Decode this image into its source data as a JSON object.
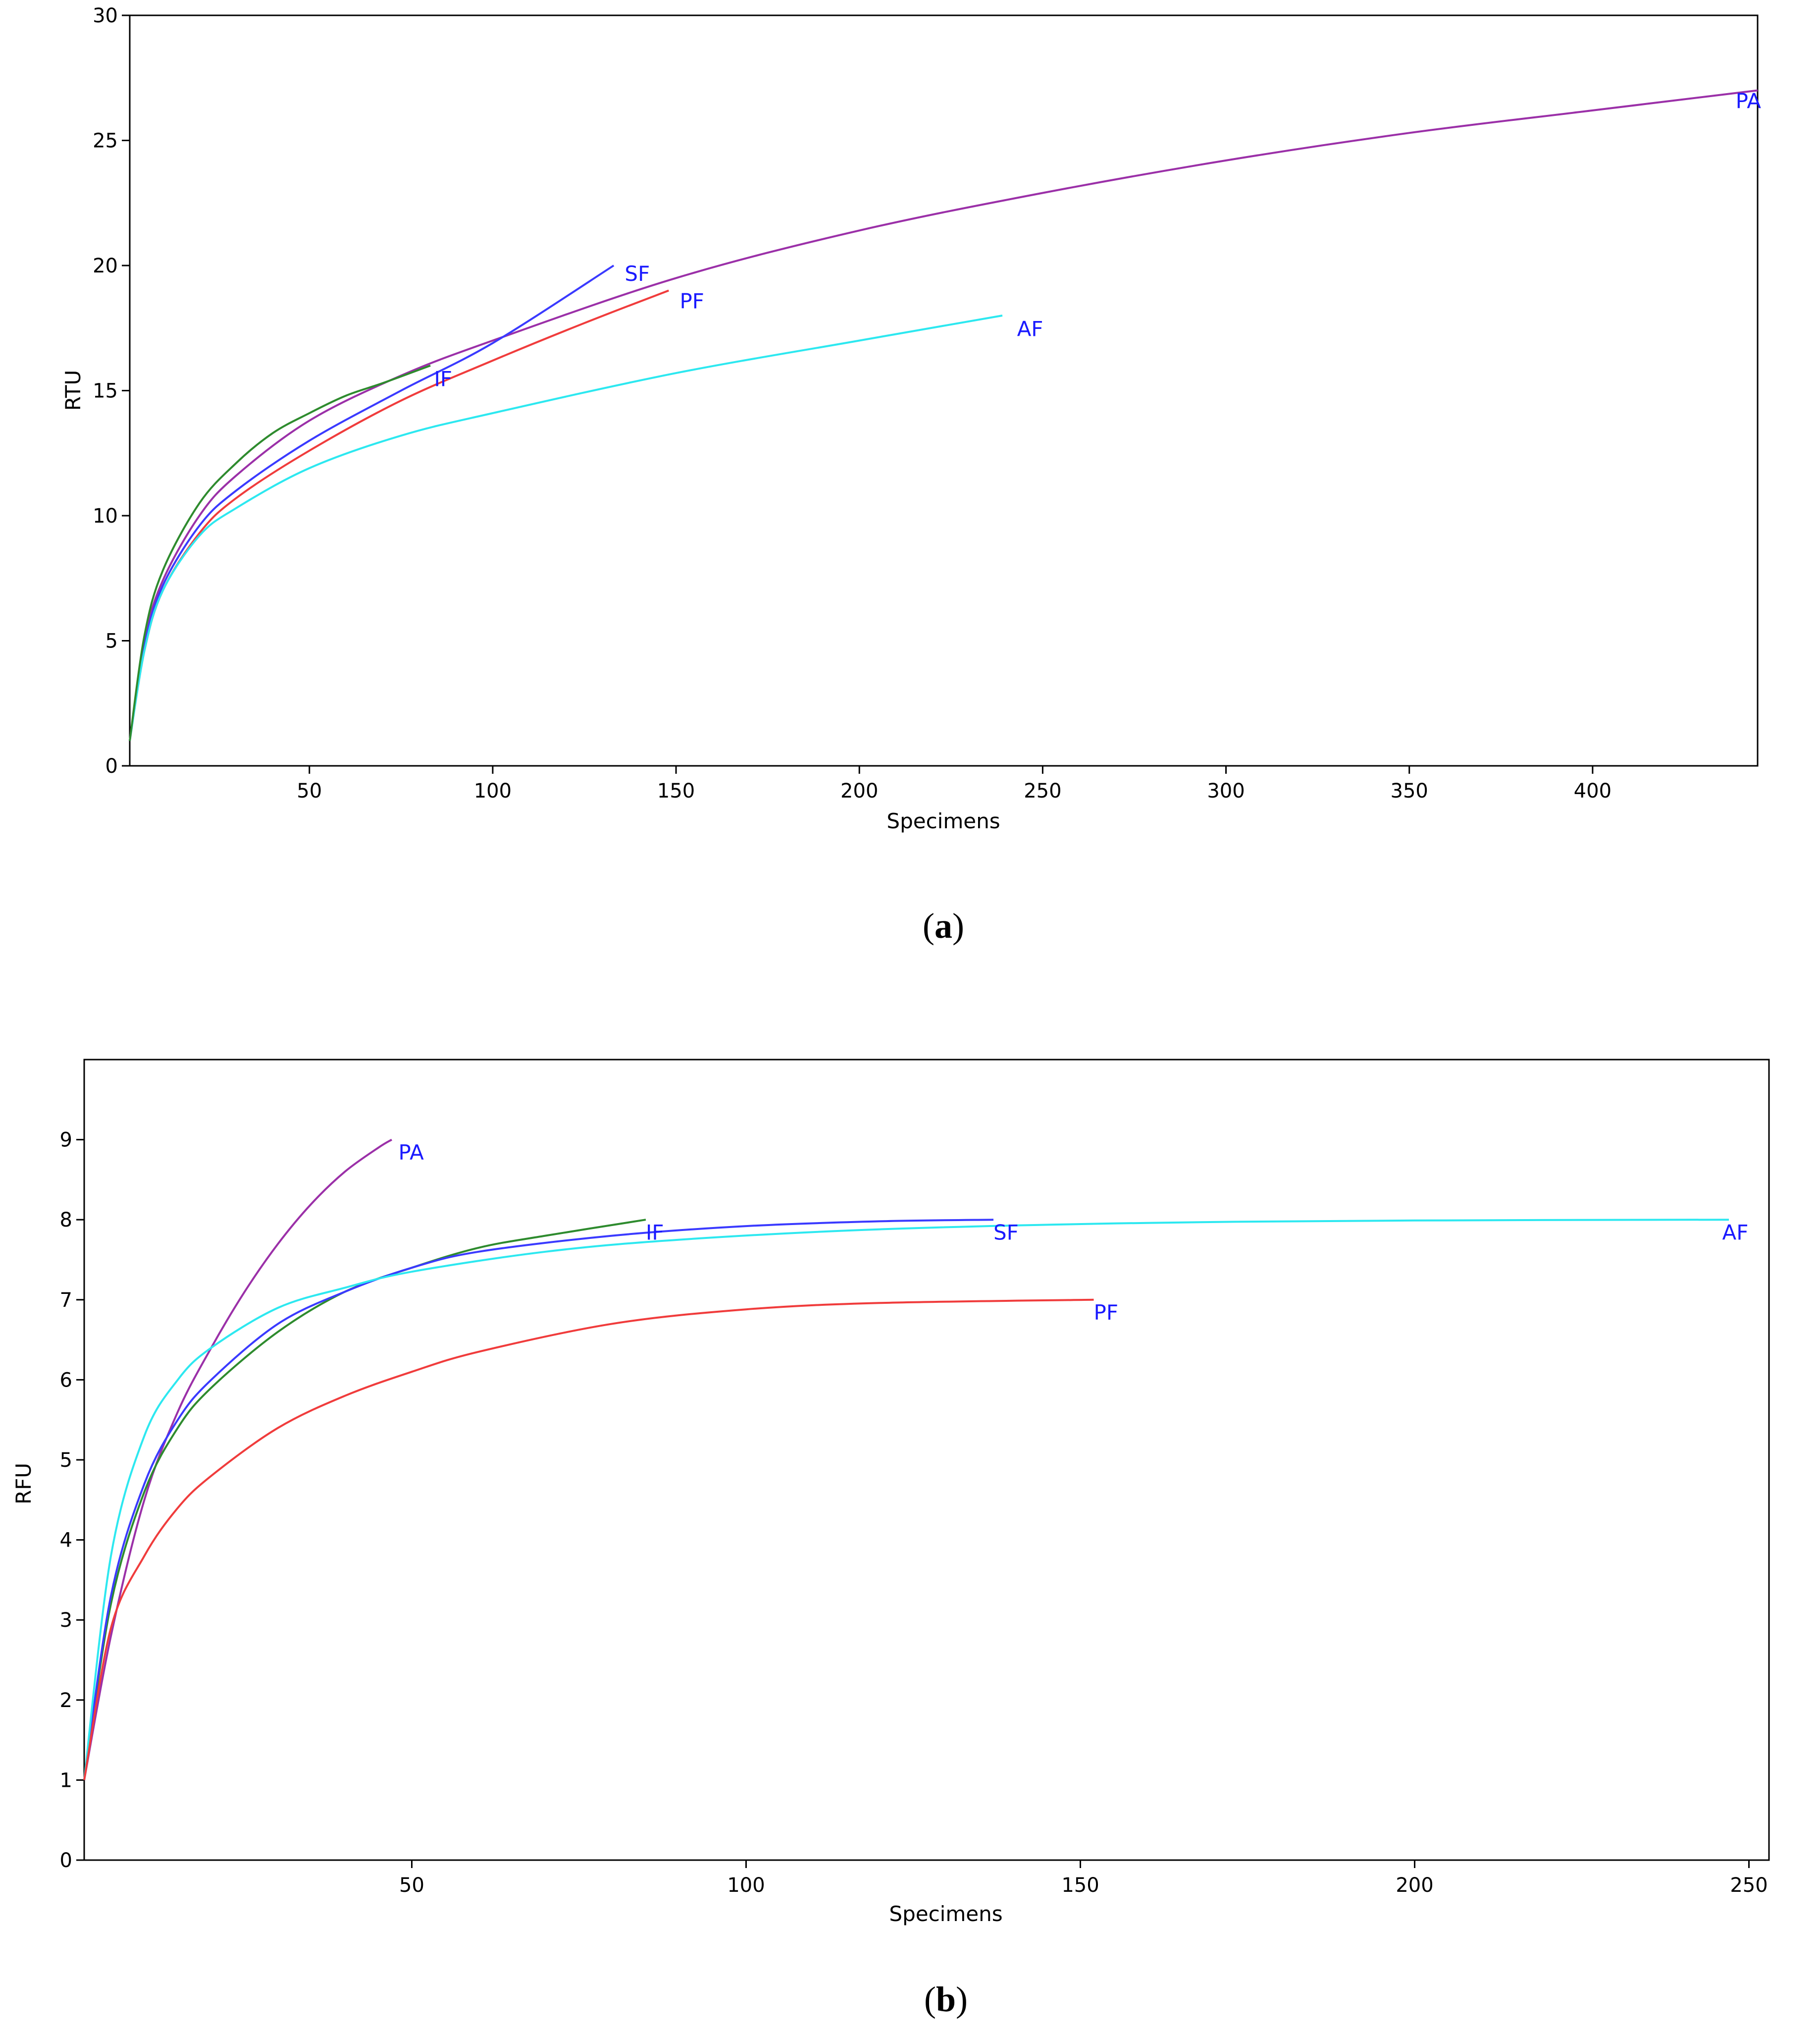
{
  "colors": {
    "SF": "#3a3aff",
    "PF": "#f03c3c",
    "AF": "#2de8f0",
    "IF": "#2e8b2e",
    "PA": "#9b30a8",
    "label_text": "#1a1aff",
    "axis": "#000000"
  },
  "chart_data": [
    {
      "panel_label": "(a)",
      "panel_letter": "a",
      "type": "line",
      "xlabel": "Specimens",
      "ylabel": "RTU",
      "xlim": [
        1,
        445
      ],
      "ylim": [
        0,
        30
      ],
      "xticks": [
        "50",
        "100",
        "150",
        "200",
        "250",
        "300",
        "350",
        "400"
      ],
      "yticks": [
        "0",
        "5",
        "10",
        "15",
        "20",
        "25",
        "30"
      ],
      "grid": false,
      "series": [
        {
          "name": "PA",
          "x": [
            1,
            5,
            10,
            20,
            30,
            50,
            75,
            100,
            150,
            200,
            250,
            300,
            350,
            400,
            445
          ],
          "y": [
            1,
            5,
            7.4,
            10,
            11.6,
            13.8,
            15.6,
            17,
            19.5,
            21.4,
            22.9,
            24.2,
            25.3,
            26.2,
            27
          ]
        },
        {
          "name": "SF",
          "x": [
            1,
            5,
            10,
            20,
            30,
            50,
            75,
            100,
            133
          ],
          "y": [
            1,
            4.8,
            7.2,
            9.6,
            11,
            13,
            15,
            16.9,
            20
          ]
        },
        {
          "name": "PF",
          "x": [
            1,
            5,
            10,
            20,
            30,
            50,
            75,
            100,
            125,
            148
          ],
          "y": [
            1,
            4.6,
            7,
            9.3,
            10.7,
            12.6,
            14.6,
            16.2,
            17.7,
            19
          ]
        },
        {
          "name": "AF",
          "x": [
            1,
            5,
            10,
            20,
            30,
            50,
            75,
            100,
            150,
            200,
            239
          ],
          "y": [
            1,
            4.6,
            7,
            9.2,
            10.3,
            11.9,
            13.2,
            14.1,
            15.7,
            17,
            18
          ]
        },
        {
          "name": "IF",
          "x": [
            1,
            5,
            10,
            20,
            30,
            40,
            50,
            60,
            70,
            83
          ],
          "y": [
            1,
            5.2,
            7.8,
            10.5,
            12.1,
            13.3,
            14.1,
            14.8,
            15.3,
            16
          ]
        }
      ],
      "labels": [
        {
          "text": "PA",
          "x": 439,
          "y": 26.6
        },
        {
          "text": "SF",
          "x": 136,
          "y": 19.7
        },
        {
          "text": "PF",
          "x": 151,
          "y": 18.6
        },
        {
          "text": "AF",
          "x": 243,
          "y": 17.5
        },
        {
          "text": "IF",
          "x": 84,
          "y": 15.5
        }
      ]
    },
    {
      "panel_label": "(b)",
      "panel_letter": "b",
      "type": "line",
      "xlabel": "Specimens",
      "ylabel": "RFU",
      "xlim": [
        1,
        253
      ],
      "ylim": [
        0,
        10
      ],
      "xticks": [
        "50",
        "100",
        "150",
        "200",
        "250"
      ],
      "yticks": [
        "0",
        "1",
        "2",
        "3",
        "4",
        "5",
        "6",
        "7",
        "8",
        "9"
      ],
      "grid": false,
      "series": [
        {
          "name": "PA",
          "x": [
            1,
            5,
            10,
            15,
            20,
            25,
            30,
            35,
            40,
            45,
            47
          ],
          "y": [
            1,
            2.8,
            4.5,
            5.6,
            6.4,
            7.1,
            7.7,
            8.2,
            8.6,
            8.9,
            9
          ]
        },
        {
          "name": "IF",
          "x": [
            1,
            5,
            10,
            15,
            20,
            30,
            40,
            50,
            60,
            70,
            85
          ],
          "y": [
            1,
            3.2,
            4.6,
            5.4,
            5.9,
            6.6,
            7.1,
            7.4,
            7.65,
            7.8,
            8
          ]
        },
        {
          "name": "SF",
          "x": [
            1,
            5,
            10,
            15,
            20,
            30,
            40,
            50,
            60,
            80,
            100,
            120,
            137
          ],
          "y": [
            1,
            3.3,
            4.7,
            5.5,
            6,
            6.7,
            7.1,
            7.4,
            7.6,
            7.8,
            7.92,
            7.98,
            8
          ]
        },
        {
          "name": "AF",
          "x": [
            1,
            5,
            10,
            15,
            20,
            30,
            40,
            50,
            70,
            90,
            120,
            160,
            200,
            247
          ],
          "y": [
            1,
            3.8,
            5.3,
            6,
            6.4,
            6.9,
            7.15,
            7.35,
            7.6,
            7.75,
            7.88,
            7.96,
            7.99,
            8
          ]
        },
        {
          "name": "PF",
          "x": [
            1,
            5,
            10,
            15,
            20,
            30,
            40,
            50,
            60,
            80,
            100,
            120,
            152
          ],
          "y": [
            1,
            2.9,
            3.8,
            4.4,
            4.8,
            5.4,
            5.8,
            6.1,
            6.35,
            6.7,
            6.88,
            6.96,
            7
          ]
        }
      ],
      "labels": [
        {
          "text": "PA",
          "x": 48,
          "y": 8.85
        },
        {
          "text": "IF",
          "x": 85,
          "y": 7.85
        },
        {
          "text": "SF",
          "x": 137,
          "y": 7.85
        },
        {
          "text": "AF",
          "x": 246,
          "y": 7.85
        },
        {
          "text": "PF",
          "x": 152,
          "y": 6.85
        }
      ]
    }
  ]
}
